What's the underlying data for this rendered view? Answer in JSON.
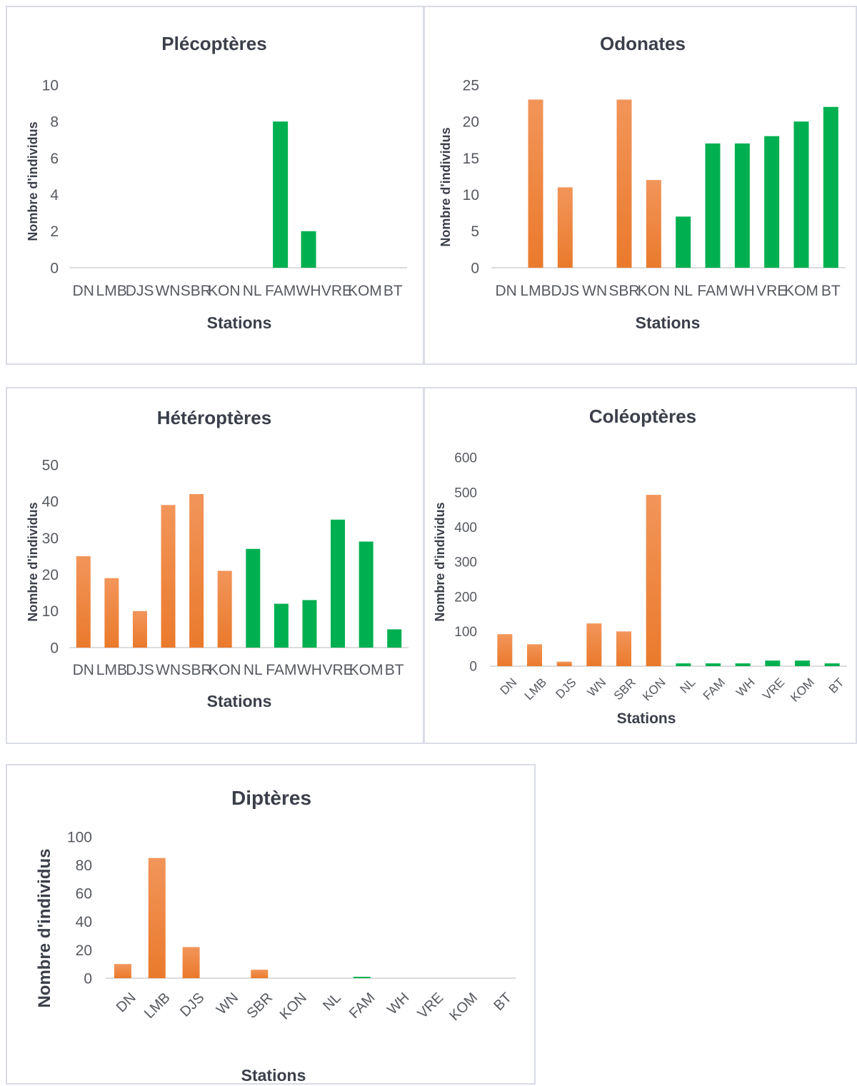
{
  "colors": {
    "orange": "#ea7a2c",
    "orange_light": "#f2955a",
    "green": "#00b050",
    "axis": "#d0d0d0"
  },
  "chart_data": [
    {
      "id": "plecopteres",
      "type": "bar",
      "title": "Plécoptères",
      "xlabel": "Stations",
      "ylabel": "Nombre d'individus",
      "categories": [
        "DN",
        "LMB",
        "DJS",
        "WN",
        "SBR",
        "KON",
        "NL",
        "FAM",
        "WH",
        "VRE",
        "KOM",
        "BT"
      ],
      "values": [
        0,
        0,
        0,
        0,
        0,
        0,
        0,
        8,
        2,
        0,
        0,
        0
      ],
      "bar_colors": [
        "orange",
        "orange",
        "orange",
        "orange",
        "orange",
        "orange",
        "green",
        "green",
        "green",
        "green",
        "green",
        "green"
      ],
      "ylim": [
        0,
        10
      ],
      "yticks": [
        0,
        2,
        4,
        6,
        8,
        10
      ],
      "grid": false,
      "legend": "none"
    },
    {
      "id": "odonates",
      "type": "bar",
      "title": "Odonates",
      "xlabel": "Stations",
      "ylabel": "Nombre d'individus",
      "categories": [
        "DN",
        "LMB",
        "DJS",
        "WN",
        "SBR",
        "KON",
        "NL",
        "FAM",
        "WH",
        "VRE",
        "KOM",
        "BT"
      ],
      "values": [
        0,
        23,
        11,
        0,
        23,
        12,
        7,
        17,
        17,
        18,
        20,
        22
      ],
      "bar_colors": [
        "orange",
        "orange",
        "orange",
        "orange",
        "orange",
        "orange",
        "green",
        "green",
        "green",
        "green",
        "green",
        "green"
      ],
      "ylim": [
        0,
        25
      ],
      "yticks": [
        0,
        5,
        10,
        15,
        20,
        25
      ],
      "grid": false,
      "legend": "none"
    },
    {
      "id": "heteropteres",
      "type": "bar",
      "title": "Hétéroptères",
      "xlabel": "Stations",
      "ylabel": "Nombre d'individus",
      "categories": [
        "DN",
        "LMB",
        "DJS",
        "WN",
        "SBR",
        "KON",
        "NL",
        "FAM",
        "WH",
        "VRE",
        "KOM",
        "BT"
      ],
      "values": [
        25,
        19,
        10,
        39,
        42,
        21,
        27,
        12,
        13,
        35,
        29,
        5
      ],
      "bar_colors": [
        "orange",
        "orange",
        "orange",
        "orange",
        "orange",
        "orange",
        "green",
        "green",
        "green",
        "green",
        "green",
        "green"
      ],
      "ylim": [
        0,
        50
      ],
      "yticks": [
        0,
        10,
        20,
        30,
        40,
        50
      ],
      "grid": false,
      "legend": "none"
    },
    {
      "id": "coleopteres",
      "type": "bar",
      "title": "Coléoptères",
      "xlabel": "Stations",
      "ylabel": "Nombre d'individus",
      "categories": [
        "DN",
        "LMB",
        "DJS",
        "WN",
        "SBR",
        "KON",
        "NL",
        "FAM",
        "WH",
        "VRE",
        "KOM",
        "BT"
      ],
      "values": [
        92,
        63,
        13,
        123,
        100,
        493,
        8,
        8,
        8,
        16,
        16,
        8
      ],
      "bar_colors": [
        "orange",
        "orange",
        "orange",
        "orange",
        "orange",
        "orange",
        "green",
        "green",
        "green",
        "green",
        "green",
        "green"
      ],
      "ylim": [
        0,
        600
      ],
      "yticks": [
        0,
        100,
        200,
        300,
        400,
        500,
        600
      ],
      "grid": false,
      "legend": "none"
    },
    {
      "id": "dipteres",
      "type": "bar",
      "title": "Diptères",
      "xlabel": "Stations",
      "ylabel": "Nombre d'individus",
      "categories": [
        "DN",
        "LMB",
        "DJS",
        "WN",
        "SBR",
        "KON",
        "NL",
        "FAM",
        "WH",
        "VRE",
        "KOM",
        "BT"
      ],
      "values": [
        10,
        85,
        22,
        0,
        6,
        0,
        0,
        1,
        0,
        0,
        0,
        0
      ],
      "bar_colors": [
        "orange",
        "orange",
        "orange",
        "orange",
        "orange",
        "orange",
        "green",
        "green",
        "green",
        "green",
        "green",
        "green"
      ],
      "ylim": [
        0,
        100
      ],
      "yticks": [
        0,
        20,
        40,
        60,
        80,
        100
      ],
      "grid": false,
      "legend": "none"
    }
  ]
}
